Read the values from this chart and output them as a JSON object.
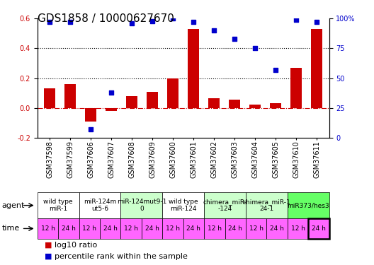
{
  "title": "GDS1858 / 10000627670",
  "samples": [
    "GSM37598",
    "GSM37599",
    "GSM37606",
    "GSM37607",
    "GSM37608",
    "GSM37609",
    "GSM37600",
    "GSM37601",
    "GSM37602",
    "GSM37603",
    "GSM37604",
    "GSM37605",
    "GSM37610",
    "GSM37611"
  ],
  "log10_ratio": [
    0.13,
    0.16,
    -0.09,
    -0.02,
    0.08,
    0.11,
    0.2,
    0.53,
    0.065,
    0.055,
    0.025,
    0.03,
    0.27,
    0.53
  ],
  "percentile_rank": [
    97,
    97,
    7,
    38,
    96,
    98,
    100,
    97,
    90,
    83,
    75,
    57,
    99,
    97
  ],
  "agents": [
    {
      "label": "wild type\nmiR-1",
      "span": [
        0,
        2
      ],
      "color": "#ffffff"
    },
    {
      "label": "miR-124m\nut5-6",
      "span": [
        2,
        4
      ],
      "color": "#ffffff"
    },
    {
      "label": "miR-124mut9-1\n0",
      "span": [
        4,
        6
      ],
      "color": "#ccffcc"
    },
    {
      "label": "wild type\nmiR-124",
      "span": [
        6,
        8
      ],
      "color": "#ffffff"
    },
    {
      "label": "chimera_miR-\n-124",
      "span": [
        8,
        10
      ],
      "color": "#ccffcc"
    },
    {
      "label": "chimera_miR-1\n24-1",
      "span": [
        10,
        12
      ],
      "color": "#ccffcc"
    },
    {
      "label": "miR373/hes3",
      "span": [
        12,
        14
      ],
      "color": "#66ff66"
    }
  ],
  "times": [
    "12 h",
    "24 h",
    "12 h",
    "24 h",
    "12 h",
    "24 h",
    "12 h",
    "24 h",
    "12 h",
    "24 h",
    "12 h",
    "24 h",
    "12 h",
    "24 h"
  ],
  "last_time_bold": true,
  "bar_color": "#cc0000",
  "dot_color": "#0000cc",
  "ylim_left": [
    -0.2,
    0.6
  ],
  "ylim_right": [
    0,
    100
  ],
  "yticks_left": [
    -0.2,
    0.0,
    0.2,
    0.4,
    0.6
  ],
  "yticks_right": [
    0,
    25,
    50,
    75,
    100
  ],
  "yticklabels_right": [
    "0",
    "25",
    "50",
    "75",
    "100%"
  ],
  "dotted_lines": [
    0.2,
    0.4
  ],
  "zero_line": 0.0,
  "agent_row_bg": "#cccccc",
  "time_row_bg": "#ff66ff",
  "font_size_title": 11,
  "font_size_ticks": 7,
  "font_size_legend": 8,
  "font_size_table": 6.5,
  "font_size_axis_label": 8
}
